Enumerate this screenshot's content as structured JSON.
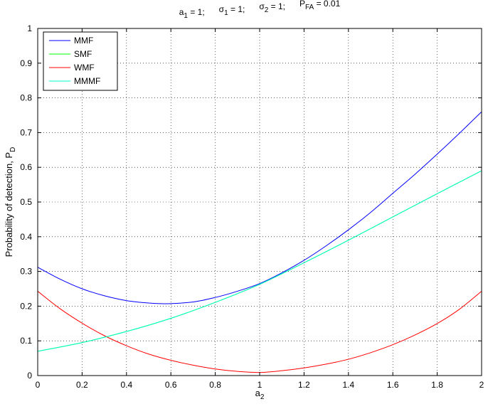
{
  "chart_data": {
    "type": "line",
    "title_parts": [
      {
        "base": "a",
        "sub": "1",
        "rest": " = 1;"
      },
      {
        "base": "σ",
        "sub": "1",
        "rest": " = 1;"
      },
      {
        "base": "σ",
        "sub": "2",
        "rest": " = 1;"
      },
      {
        "base": "P",
        "sub": "FA",
        "rest": " = 0.01"
      }
    ],
    "xlabel": {
      "base": "a",
      "sub": "2"
    },
    "ylabel": {
      "base": "Probability of detection, P",
      "sub": "D"
    },
    "xlim": [
      0,
      2
    ],
    "ylim": [
      0,
      1
    ],
    "xticks": [
      "0",
      "0.2",
      "0.4",
      "0.6",
      "0.8",
      "1",
      "1.2",
      "1.4",
      "1.6",
      "1.8",
      "2"
    ],
    "yticks": [
      "0",
      "0.1",
      "0.2",
      "0.3",
      "0.4",
      "0.5",
      "0.6",
      "0.7",
      "0.8",
      "0.9",
      "1"
    ],
    "grid": true,
    "legend_position": "top-left",
    "series": [
      {
        "name": "MMF",
        "color": "#0000ff",
        "x": [
          0,
          0.1,
          0.2,
          0.3,
          0.4,
          0.5,
          0.58,
          0.7,
          0.8,
          0.9,
          1.0,
          1.1,
          1.2,
          1.3,
          1.4,
          1.5,
          1.6,
          1.7,
          1.8,
          1.9,
          2.0
        ],
        "y": [
          0.312,
          0.278,
          0.25,
          0.23,
          0.216,
          0.209,
          0.207,
          0.212,
          0.225,
          0.243,
          0.265,
          0.296,
          0.332,
          0.374,
          0.42,
          0.47,
          0.525,
          0.58,
          0.638,
          0.698,
          0.76
        ]
      },
      {
        "name": "SMF",
        "color": "#00ff00",
        "x": [
          0,
          0.2,
          0.4,
          0.6,
          0.8,
          1.0,
          1.2,
          1.4,
          1.6,
          1.8,
          2.0
        ],
        "y": [
          0.07,
          0.095,
          0.127,
          0.165,
          0.211,
          0.263,
          0.325,
          0.39,
          0.457,
          0.524,
          0.59
        ]
      },
      {
        "name": "WMF",
        "color": "#ff0000",
        "x": [
          0,
          0.1,
          0.2,
          0.3,
          0.4,
          0.5,
          0.6,
          0.7,
          0.8,
          0.9,
          1.0,
          1.1,
          1.2,
          1.3,
          1.4,
          1.5,
          1.6,
          1.7,
          1.8,
          1.9,
          2.0
        ],
        "y": [
          0.243,
          0.193,
          0.151,
          0.115,
          0.086,
          0.062,
          0.044,
          0.03,
          0.019,
          0.012,
          0.009,
          0.014,
          0.022,
          0.033,
          0.047,
          0.066,
          0.089,
          0.117,
          0.15,
          0.191,
          0.243
        ]
      },
      {
        "name": "MMMF",
        "color": "#00ffcc",
        "x": [
          0,
          0.2,
          0.4,
          0.6,
          0.8,
          1.0,
          1.2,
          1.4,
          1.6,
          1.8,
          2.0
        ],
        "y": [
          0.07,
          0.095,
          0.127,
          0.165,
          0.211,
          0.263,
          0.325,
          0.39,
          0.457,
          0.524,
          0.59
        ]
      }
    ]
  }
}
